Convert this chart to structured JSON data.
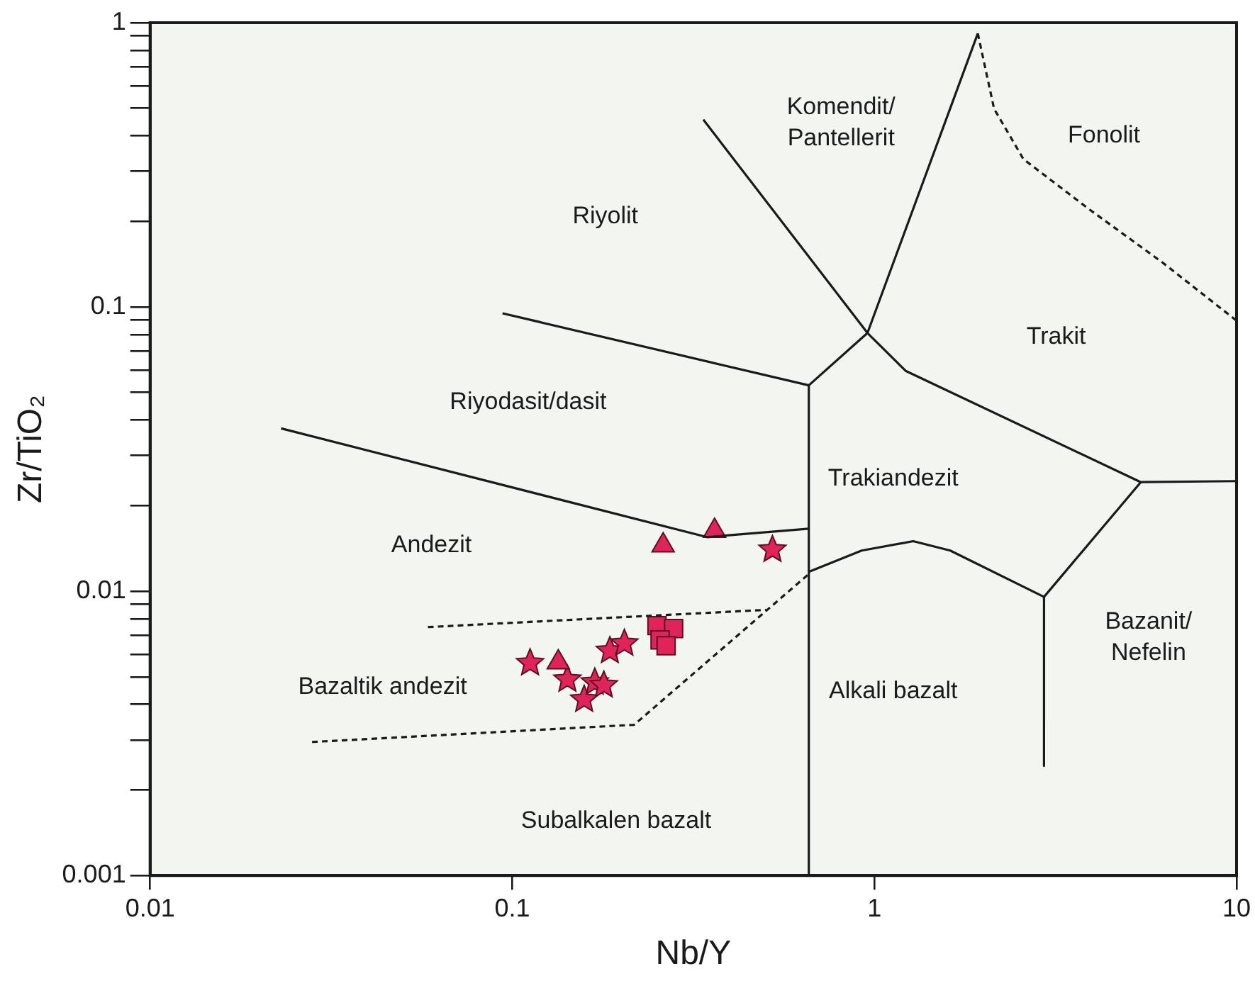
{
  "chart_data": {
    "type": "scatter",
    "xlabel": "Nb/Y",
    "ylabel": "Zr/TiO₂",
    "log": "xy",
    "grid": false,
    "legend": false,
    "xlim": [
      0.01,
      10
    ],
    "xticks": [
      0.01,
      0.1,
      1,
      10
    ],
    "ylim": [
      0.001,
      1
    ],
    "yticks": [
      0.001,
      {
        "value": 0.002,
        "label": null
      },
      {
        "value": 0.003,
        "label": null
      },
      {
        "value": 0.004,
        "label": null
      },
      {
        "value": 0.005,
        "label": null
      },
      {
        "value": 0.006,
        "label": null
      },
      {
        "value": 0.007,
        "label": null
      },
      {
        "value": 0.008,
        "label": null
      },
      {
        "value": 0.009,
        "label": null
      },
      0.01,
      {
        "value": 0.02,
        "label": null
      },
      {
        "value": 0.03,
        "label": null
      },
      {
        "value": 0.04,
        "label": null
      },
      {
        "value": 0.05,
        "label": null
      },
      {
        "value": 0.06,
        "label": null
      },
      {
        "value": 0.07,
        "label": null
      },
      {
        "value": 0.08,
        "label": null
      },
      {
        "value": 0.09,
        "label": null
      },
      0.1,
      {
        "value": 0.2,
        "label": null
      },
      {
        "value": 0.3,
        "label": null
      },
      {
        "value": 0.4,
        "label": null
      },
      {
        "value": 0.5,
        "label": null
      },
      {
        "value": 0.6,
        "label": null
      },
      {
        "value": 0.7,
        "label": null
      },
      {
        "value": 0.8,
        "label": null
      },
      {
        "value": 0.9,
        "label": null
      },
      1
    ],
    "series": [
      {
        "type": "line",
        "marker": "none",
        "line_style": "solid",
        "color": "#1a1a1a",
        "x": [
          0.337,
          0.957,
          1.93
        ],
        "values": [
          0.456,
          0.081,
          0.917
        ]
      },
      {
        "type": "line",
        "marker": "none",
        "line_style": "solid",
        "color": "#1a1a1a",
        "x": [
          0.094,
          0.659,
          0.957
        ],
        "values": [
          0.095,
          0.053,
          0.081
        ]
      },
      {
        "type": "line",
        "marker": "none",
        "line_style": "solid",
        "color": "#1a1a1a",
        "x": [
          0.957,
          1.22,
          5.44,
          10
        ],
        "values": [
          0.081,
          0.0596,
          0.0242,
          0.0244
        ]
      },
      {
        "type": "line",
        "marker": "none",
        "line_style": "solid",
        "color": "#1a1a1a",
        "x": [
          0.659,
          0.659
        ],
        "values": [
          0.053,
          0.001
        ]
      },
      {
        "type": "line",
        "marker": "none",
        "line_style": "solid",
        "color": "#1a1a1a",
        "x": [
          0.023,
          0.345,
          0.659
        ],
        "values": [
          0.0374,
          0.0155,
          0.0166
        ]
      },
      {
        "type": "line",
        "marker": "none",
        "line_style": "solid",
        "color": "#1a1a1a",
        "x": [
          0.659,
          0.922,
          1.28,
          1.62,
          2.94,
          5.44
        ],
        "values": [
          0.0117,
          0.0139,
          0.015,
          0.0139,
          0.00955,
          0.0242
        ]
      },
      {
        "type": "line",
        "marker": "none",
        "line_style": "solid",
        "color": "#1a1a1a",
        "x": [
          2.94,
          2.94
        ],
        "values": [
          0.00955,
          0.00243
        ]
      },
      {
        "type": "line",
        "marker": "none",
        "line_style": "dashed",
        "color": "#1a1a1a",
        "x": [
          1.93,
          2.14,
          2.58,
          3.93,
          6.26,
          10
        ],
        "values": [
          0.917,
          0.498,
          0.331,
          0.22,
          0.143,
          0.0895
        ]
      },
      {
        "type": "line",
        "marker": "none",
        "line_style": "dashed",
        "color": "#1a1a1a",
        "x": [
          0.0585,
          0.502
        ],
        "values": [
          0.00748,
          0.0086
        ]
      },
      {
        "type": "line",
        "marker": "none",
        "line_style": "dashed",
        "color": "#1a1a1a",
        "x": [
          0.028,
          0.217,
          0.659
        ],
        "values": [
          0.00295,
          0.00339,
          0.0115
        ]
      },
      {
        "type": "scatter",
        "marker": "square",
        "color": "#e0245a",
        "x": [
          0.251,
          0.279,
          0.256,
          0.266
        ],
        "values": [
          0.00757,
          0.00739,
          0.00674,
          0.00643
        ]
      },
      {
        "type": "scatter",
        "marker": "triangle",
        "color": "#e0245a",
        "x": [
          0.261,
          0.362,
          0.134
        ],
        "values": [
          0.0145,
          0.0163,
          0.00562
        ]
      },
      {
        "type": "scatter",
        "marker": "star",
        "color": "#e0245a",
        "x": [
          0.112,
          0.142,
          0.158,
          0.169,
          0.179,
          0.186,
          0.204,
          0.523
        ],
        "values": [
          0.00559,
          0.00489,
          0.00416,
          0.00478,
          0.00467,
          0.00617,
          0.00655,
          0.014
        ]
      }
    ],
    "annotations": [
      "Komendit/\nPantellerit",
      "Fonolit",
      "Riyolit",
      "Trakit",
      "Riyodasit/dasit",
      "Trakiandezit",
      "Andezit",
      "Bazanit/\nNefelin",
      "Alkali bazalt",
      "Bazaltik andezit",
      "Subalkalen bazalt"
    ]
  }
}
